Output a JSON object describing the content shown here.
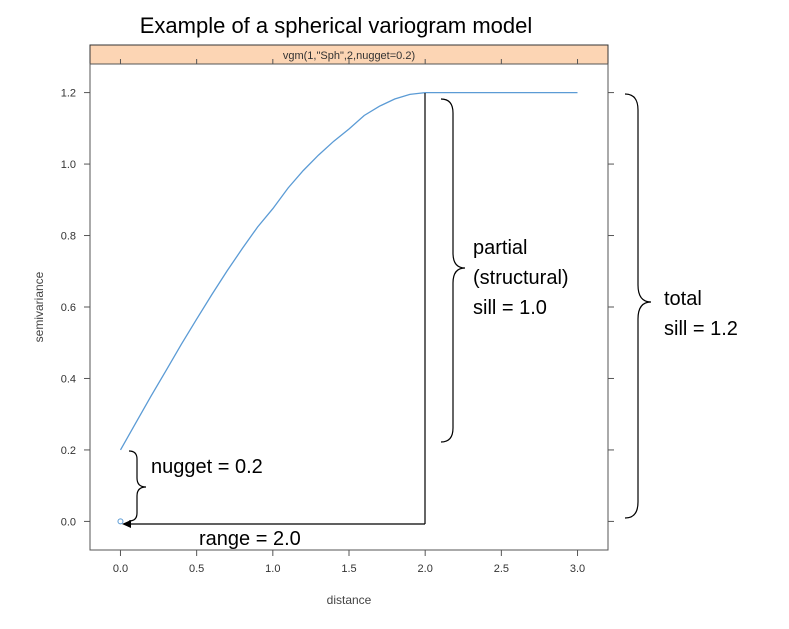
{
  "chart_data": {
    "type": "line",
    "title": "Example of a spherical variogram model",
    "strip_label": "vgm(1,\"Sph\",2,nugget=0.2)",
    "xlabel": "distance",
    "ylabel": "semivariance",
    "xlim": [
      -0.2,
      3.2
    ],
    "ylim": [
      -0.08,
      1.28
    ],
    "x_ticks": [
      "0.0",
      "0.5",
      "1.0",
      "1.5",
      "2.0",
      "2.5",
      "3.0"
    ],
    "y_ticks": [
      "0.0",
      "0.2",
      "0.4",
      "0.6",
      "0.8",
      "1.0",
      "1.2"
    ],
    "grid": false,
    "series": [
      {
        "x": [
          0.0,
          0.1,
          0.2,
          0.3,
          0.4,
          0.5,
          0.6,
          0.7,
          0.8,
          0.9,
          1.0,
          1.1,
          1.2,
          1.3,
          1.4,
          1.5,
          1.6,
          1.7,
          1.8,
          1.9,
          2.0,
          2.5,
          3.0
        ],
        "y": [
          0.2,
          0.275,
          0.35,
          0.423,
          0.496,
          0.566,
          0.635,
          0.701,
          0.764,
          0.824,
          0.875,
          0.933,
          0.982,
          1.025,
          1.064,
          1.098,
          1.136,
          1.162,
          1.182,
          1.195,
          1.2,
          1.2,
          1.2
        ],
        "color": "#5b9bd5"
      }
    ],
    "points": [
      {
        "x": 0.0,
        "y": 0.0,
        "color": "#5b9bd5"
      }
    ],
    "model": {
      "type": "Sph",
      "partial_sill": 1.0,
      "range": 2.0,
      "nugget": 0.2
    },
    "annotations": {
      "nugget": "nugget = 0.2",
      "range": "range = 2.0",
      "partial_sill_lines": [
        "partial",
        "(structural)",
        "sill = 1.0"
      ],
      "total_sill_lines": [
        "total",
        "sill = 1.2"
      ]
    },
    "colors": {
      "line": "#5b9bd5",
      "strip_fill": "#fcd5b4",
      "annotation": "#000000",
      "axis": "#555555"
    }
  }
}
